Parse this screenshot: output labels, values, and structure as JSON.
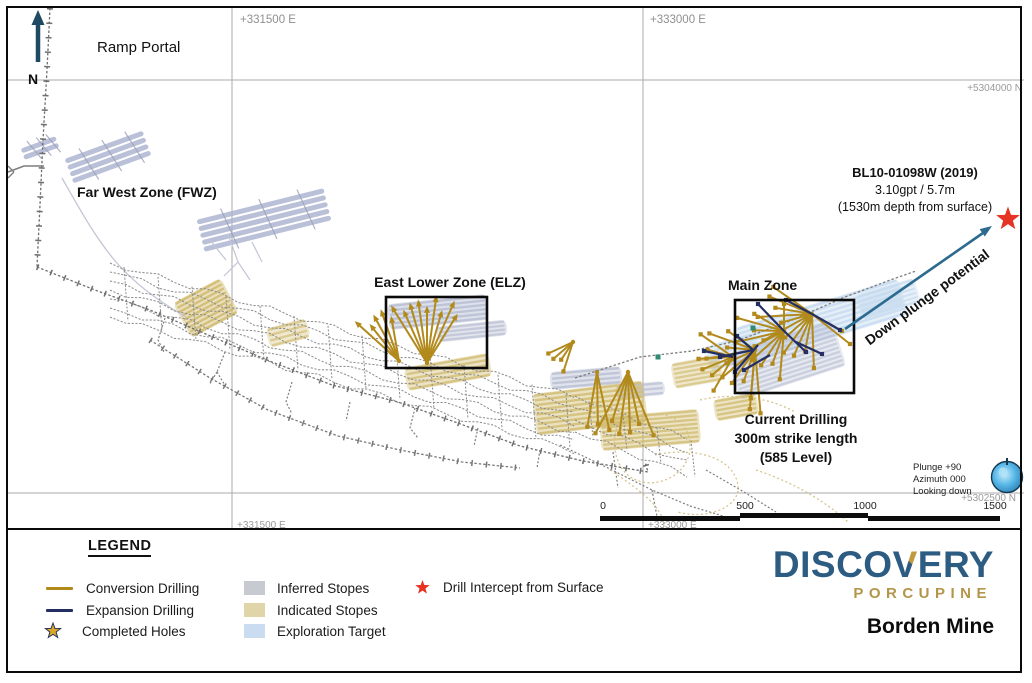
{
  "map": {
    "north_label": "N",
    "ramp_portal_label": "Ramp Portal",
    "grid_labels": {
      "east_1": "+331500 E",
      "east_2": "+333000 E",
      "east_1_bottom": "+331500 E",
      "east_2_bottom": "+333000 E",
      "north_1": "+5304000 N",
      "north_2": "+5302500 N"
    },
    "zone_labels": {
      "far_west": "Far West Zone (FWZ)",
      "east_lower": "East Lower Zone (ELZ)",
      "main": "Main Zone"
    },
    "intercept_annotation": {
      "line1": "BL10-01098W (2019)",
      "line2": "3.10gpt / 5.7m",
      "line3": "(1530m depth from surface)"
    },
    "down_plunge_label": "Down plunge potential",
    "current_drilling": {
      "line1": "Current Drilling",
      "line2": "300m strike length",
      "line3": "(585 Level)"
    },
    "view_orientation": {
      "line1": "Plunge +90",
      "line2": "Azimuth 000",
      "line3": "Looking down"
    },
    "scale_ticks": [
      "0",
      "500",
      "1000",
      "1500"
    ]
  },
  "legend": {
    "title": "LEGEND",
    "drilling_items": [
      {
        "label": "Conversion Drilling"
      },
      {
        "label": "Expansion Drilling"
      },
      {
        "label": "Completed Holes"
      }
    ],
    "stope_items": [
      {
        "label": "Inferred Stopes"
      },
      {
        "label": "Indicated Stopes"
      },
      {
        "label": "Exploration Target"
      }
    ],
    "intercept_item": {
      "label": "Drill Intercept from Surface"
    }
  },
  "branding": {
    "wordmark_pre": "DISCO",
    "wordmark_v": "V",
    "wordmark_post": "ERY",
    "wordmark_sub": "PORCUPINE",
    "site_label": "Borden Mine"
  },
  "colors": {
    "conversion_gold": "#b28a1c",
    "expansion_navy": "#232e63",
    "inferred_gray": "#c8cad1",
    "indicated_tan": "#e0d5a8",
    "exploration_blue": "#cadcf0",
    "intercept_red": "#e63323",
    "arrow_blue": "#2c6b8f",
    "brand_blue": "#2d5c82",
    "brand_gold": "#b5954a"
  }
}
